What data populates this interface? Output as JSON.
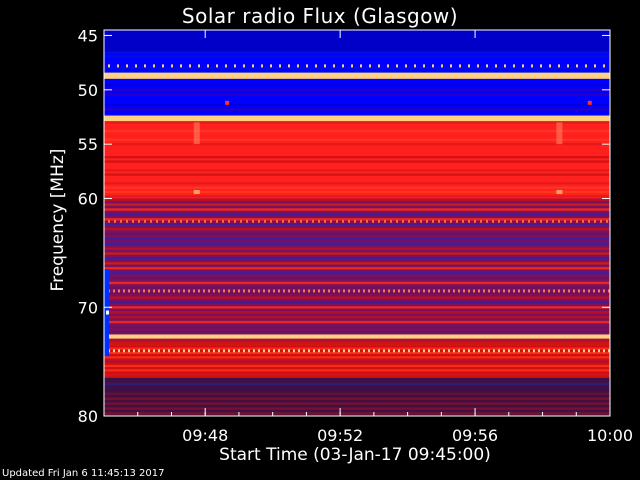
{
  "chart_data": {
    "type": "heatmap",
    "title": "Solar radio Flux (Glasgow)",
    "xlabel": "Start Time (03-Jan-17 09:45:00)",
    "ylabel": "Frequency [MHz]",
    "x_ticks": [
      "09:48",
      "09:52",
      "09:56",
      "10:00"
    ],
    "x_tick_minutes": [
      3,
      7,
      11,
      15
    ],
    "xlim_minutes": [
      0,
      15
    ],
    "y_ticks": [
      45,
      50,
      55,
      60,
      70,
      80
    ],
    "ylim_mhz": [
      44.5,
      80
    ],
    "colors": {
      "low": "#0000ff",
      "mid": "#d01010",
      "high": "#ff2020",
      "peak": "#ffd080",
      "background": "#000000"
    },
    "bands": [
      {
        "from": 44.5,
        "to": 46.5,
        "level": "low-dark"
      },
      {
        "from": 46.5,
        "to": 48.4,
        "level": "low"
      },
      {
        "from": 48.4,
        "to": 49.0,
        "level": "peak"
      },
      {
        "from": 49.0,
        "to": 52.3,
        "level": "low"
      },
      {
        "from": 52.3,
        "to": 52.9,
        "level": "peak"
      },
      {
        "from": 52.9,
        "to": 60.0,
        "level": "high"
      },
      {
        "from": 60.0,
        "to": 62.0,
        "level": "mixed"
      },
      {
        "from": 62.0,
        "to": 72.5,
        "level": "mixed"
      },
      {
        "from": 72.5,
        "to": 72.9,
        "level": "peak"
      },
      {
        "from": 72.9,
        "to": 76.5,
        "level": "mid"
      },
      {
        "from": 76.5,
        "to": 80.0,
        "level": "dark-mixed"
      }
    ]
  },
  "footer": "Updated Fri Jan  6 11:45:13 2017"
}
